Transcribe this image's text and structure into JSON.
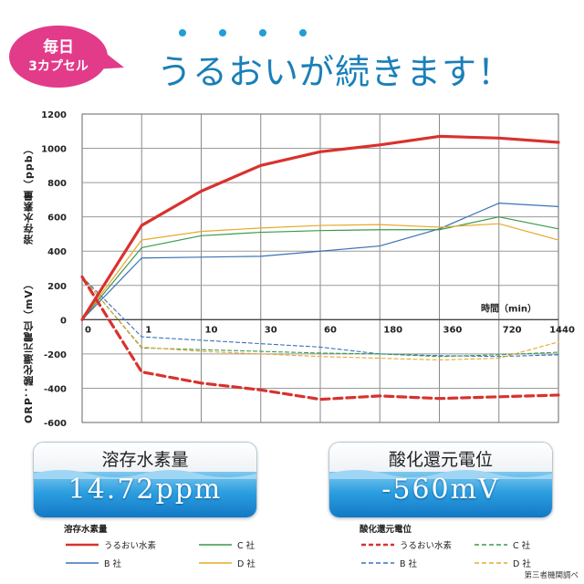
{
  "badge": {
    "line1": "毎日",
    "line2": "3カプセル",
    "color": "#e23b8a"
  },
  "headline": "うるおいが続きます！",
  "headline_color": "#1a7fb9",
  "chart_data": {
    "type": "line",
    "x": [
      "0",
      "1",
      "10",
      "30",
      "60",
      "180",
      "360",
      "720",
      "1440"
    ],
    "xlabel": "時間（min）",
    "ylabel_top": "溶存水素量（ppb）",
    "ylabel_bottom": "ORP：酸化還元電位（mV）",
    "ylim": [
      -600,
      1200
    ],
    "yticks": [
      1200,
      1000,
      800,
      600,
      400,
      200,
      0,
      -200,
      -400,
      -600
    ],
    "grid": true,
    "series": [
      {
        "name": "うるおい水素",
        "group": "hydrogen",
        "style": "solid",
        "color": "#d8322e",
        "width": 3.2,
        "values": [
          0,
          550,
          750,
          900,
          980,
          1020,
          1070,
          1060,
          1035
        ]
      },
      {
        "name": "B社",
        "group": "hydrogen",
        "style": "solid",
        "color": "#3a72b8",
        "width": 1.2,
        "values": [
          0,
          360,
          365,
          370,
          400,
          430,
          530,
          680,
          660
        ]
      },
      {
        "name": "C社",
        "group": "hydrogen",
        "style": "solid",
        "color": "#3a9a4c",
        "width": 1.2,
        "values": [
          0,
          420,
          490,
          510,
          520,
          525,
          525,
          600,
          530
        ]
      },
      {
        "name": "D社",
        "group": "hydrogen",
        "style": "solid",
        "color": "#e8a82c",
        "width": 1.2,
        "values": [
          0,
          465,
          515,
          535,
          550,
          555,
          540,
          560,
          465
        ]
      },
      {
        "name": "うるおい水素",
        "group": "orp",
        "style": "dashed",
        "color": "#d8322e",
        "width": 3.2,
        "values": [
          250,
          -305,
          -370,
          -410,
          -465,
          -445,
          -460,
          -450,
          -440
        ]
      },
      {
        "name": "B社",
        "group": "orp",
        "style": "dashed",
        "color": "#3a72b8",
        "width": 1.1,
        "values": [
          250,
          -100,
          -120,
          -140,
          -160,
          -200,
          -210,
          -215,
          -205
        ]
      },
      {
        "name": "C社",
        "group": "orp",
        "style": "dashed",
        "color": "#3a9a4c",
        "width": 1.1,
        "values": [
          250,
          -165,
          -175,
          -185,
          -195,
          -200,
          -215,
          -205,
          -190
        ]
      },
      {
        "name": "D社",
        "group": "orp",
        "style": "dashed",
        "color": "#e8a82c",
        "width": 1.1,
        "values": [
          250,
          -160,
          -185,
          -200,
          -215,
          -225,
          -235,
          -225,
          -130
        ]
      }
    ]
  },
  "cards": [
    {
      "title": "溶存水素量",
      "value": "14.72ppm"
    },
    {
      "title": "酸化還元電位",
      "value": "-560mV"
    }
  ],
  "legend_hydrogen": {
    "title": "溶存水素量",
    "items": [
      {
        "label": "うるおい水素",
        "color": "#d8322e",
        "style": "solid"
      },
      {
        "label": "C 社",
        "color": "#3a9a4c",
        "style": "solid"
      },
      {
        "label": "B 社",
        "color": "#3a72b8",
        "style": "solid"
      },
      {
        "label": "D 社",
        "color": "#e8a82c",
        "style": "solid"
      }
    ]
  },
  "legend_orp": {
    "title": "酸化還元電位",
    "items": [
      {
        "label": "うるおい水素",
        "color": "#d8322e",
        "style": "dashed"
      },
      {
        "label": "C 社",
        "color": "#3a9a4c",
        "style": "dashed"
      },
      {
        "label": "B 社",
        "color": "#3a72b8",
        "style": "dashed"
      },
      {
        "label": "D 社",
        "color": "#e8a82c",
        "style": "dashed"
      }
    ]
  },
  "footnote": "第三者機関調べ"
}
